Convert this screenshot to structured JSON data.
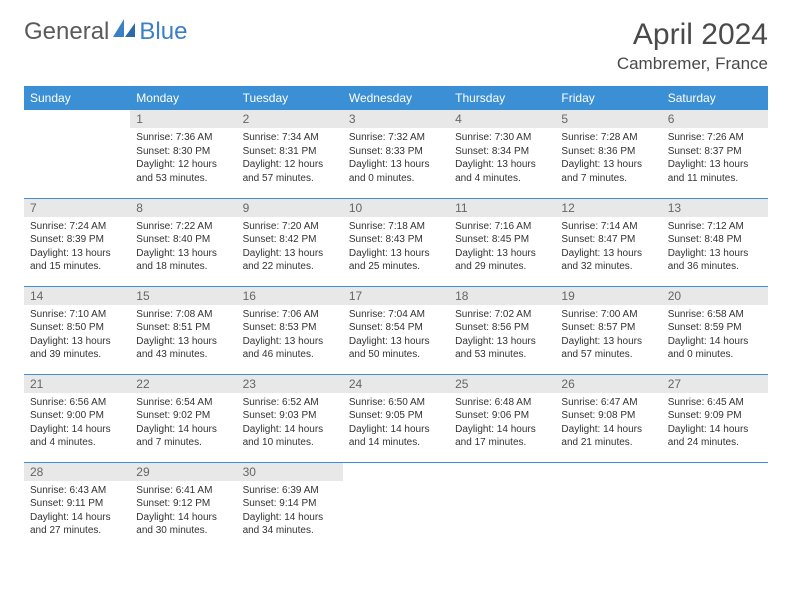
{
  "brand": {
    "part1": "General",
    "part2": "Blue"
  },
  "month_title": "April 2024",
  "location": "Cambremer, France",
  "colors": {
    "header_bg": "#3b8fd4",
    "header_text": "#ffffff",
    "daynum_bg": "#e8e8e8",
    "daynum_text": "#666666",
    "body_text": "#333333",
    "rule": "#3b8fd4",
    "brand_gray": "#5a5a5a",
    "brand_blue": "#3b7fc4"
  },
  "typography": {
    "month_title_fontsize": 30,
    "location_fontsize": 17,
    "dow_fontsize": 12,
    "daynum_fontsize": 12,
    "body_fontsize": 10
  },
  "day_labels": [
    "Sunday",
    "Monday",
    "Tuesday",
    "Wednesday",
    "Thursday",
    "Friday",
    "Saturday"
  ],
  "weeks": [
    [
      {
        "n": "",
        "sunrise": "",
        "sunset": "",
        "daylight1": "",
        "daylight2": ""
      },
      {
        "n": "1",
        "sunrise": "Sunrise: 7:36 AM",
        "sunset": "Sunset: 8:30 PM",
        "daylight1": "Daylight: 12 hours",
        "daylight2": "and 53 minutes."
      },
      {
        "n": "2",
        "sunrise": "Sunrise: 7:34 AM",
        "sunset": "Sunset: 8:31 PM",
        "daylight1": "Daylight: 12 hours",
        "daylight2": "and 57 minutes."
      },
      {
        "n": "3",
        "sunrise": "Sunrise: 7:32 AM",
        "sunset": "Sunset: 8:33 PM",
        "daylight1": "Daylight: 13 hours",
        "daylight2": "and 0 minutes."
      },
      {
        "n": "4",
        "sunrise": "Sunrise: 7:30 AM",
        "sunset": "Sunset: 8:34 PM",
        "daylight1": "Daylight: 13 hours",
        "daylight2": "and 4 minutes."
      },
      {
        "n": "5",
        "sunrise": "Sunrise: 7:28 AM",
        "sunset": "Sunset: 8:36 PM",
        "daylight1": "Daylight: 13 hours",
        "daylight2": "and 7 minutes."
      },
      {
        "n": "6",
        "sunrise": "Sunrise: 7:26 AM",
        "sunset": "Sunset: 8:37 PM",
        "daylight1": "Daylight: 13 hours",
        "daylight2": "and 11 minutes."
      }
    ],
    [
      {
        "n": "7",
        "sunrise": "Sunrise: 7:24 AM",
        "sunset": "Sunset: 8:39 PM",
        "daylight1": "Daylight: 13 hours",
        "daylight2": "and 15 minutes."
      },
      {
        "n": "8",
        "sunrise": "Sunrise: 7:22 AM",
        "sunset": "Sunset: 8:40 PM",
        "daylight1": "Daylight: 13 hours",
        "daylight2": "and 18 minutes."
      },
      {
        "n": "9",
        "sunrise": "Sunrise: 7:20 AM",
        "sunset": "Sunset: 8:42 PM",
        "daylight1": "Daylight: 13 hours",
        "daylight2": "and 22 minutes."
      },
      {
        "n": "10",
        "sunrise": "Sunrise: 7:18 AM",
        "sunset": "Sunset: 8:43 PM",
        "daylight1": "Daylight: 13 hours",
        "daylight2": "and 25 minutes."
      },
      {
        "n": "11",
        "sunrise": "Sunrise: 7:16 AM",
        "sunset": "Sunset: 8:45 PM",
        "daylight1": "Daylight: 13 hours",
        "daylight2": "and 29 minutes."
      },
      {
        "n": "12",
        "sunrise": "Sunrise: 7:14 AM",
        "sunset": "Sunset: 8:47 PM",
        "daylight1": "Daylight: 13 hours",
        "daylight2": "and 32 minutes."
      },
      {
        "n": "13",
        "sunrise": "Sunrise: 7:12 AM",
        "sunset": "Sunset: 8:48 PM",
        "daylight1": "Daylight: 13 hours",
        "daylight2": "and 36 minutes."
      }
    ],
    [
      {
        "n": "14",
        "sunrise": "Sunrise: 7:10 AM",
        "sunset": "Sunset: 8:50 PM",
        "daylight1": "Daylight: 13 hours",
        "daylight2": "and 39 minutes."
      },
      {
        "n": "15",
        "sunrise": "Sunrise: 7:08 AM",
        "sunset": "Sunset: 8:51 PM",
        "daylight1": "Daylight: 13 hours",
        "daylight2": "and 43 minutes."
      },
      {
        "n": "16",
        "sunrise": "Sunrise: 7:06 AM",
        "sunset": "Sunset: 8:53 PM",
        "daylight1": "Daylight: 13 hours",
        "daylight2": "and 46 minutes."
      },
      {
        "n": "17",
        "sunrise": "Sunrise: 7:04 AM",
        "sunset": "Sunset: 8:54 PM",
        "daylight1": "Daylight: 13 hours",
        "daylight2": "and 50 minutes."
      },
      {
        "n": "18",
        "sunrise": "Sunrise: 7:02 AM",
        "sunset": "Sunset: 8:56 PM",
        "daylight1": "Daylight: 13 hours",
        "daylight2": "and 53 minutes."
      },
      {
        "n": "19",
        "sunrise": "Sunrise: 7:00 AM",
        "sunset": "Sunset: 8:57 PM",
        "daylight1": "Daylight: 13 hours",
        "daylight2": "and 57 minutes."
      },
      {
        "n": "20",
        "sunrise": "Sunrise: 6:58 AM",
        "sunset": "Sunset: 8:59 PM",
        "daylight1": "Daylight: 14 hours",
        "daylight2": "and 0 minutes."
      }
    ],
    [
      {
        "n": "21",
        "sunrise": "Sunrise: 6:56 AM",
        "sunset": "Sunset: 9:00 PM",
        "daylight1": "Daylight: 14 hours",
        "daylight2": "and 4 minutes."
      },
      {
        "n": "22",
        "sunrise": "Sunrise: 6:54 AM",
        "sunset": "Sunset: 9:02 PM",
        "daylight1": "Daylight: 14 hours",
        "daylight2": "and 7 minutes."
      },
      {
        "n": "23",
        "sunrise": "Sunrise: 6:52 AM",
        "sunset": "Sunset: 9:03 PM",
        "daylight1": "Daylight: 14 hours",
        "daylight2": "and 10 minutes."
      },
      {
        "n": "24",
        "sunrise": "Sunrise: 6:50 AM",
        "sunset": "Sunset: 9:05 PM",
        "daylight1": "Daylight: 14 hours",
        "daylight2": "and 14 minutes."
      },
      {
        "n": "25",
        "sunrise": "Sunrise: 6:48 AM",
        "sunset": "Sunset: 9:06 PM",
        "daylight1": "Daylight: 14 hours",
        "daylight2": "and 17 minutes."
      },
      {
        "n": "26",
        "sunrise": "Sunrise: 6:47 AM",
        "sunset": "Sunset: 9:08 PM",
        "daylight1": "Daylight: 14 hours",
        "daylight2": "and 21 minutes."
      },
      {
        "n": "27",
        "sunrise": "Sunrise: 6:45 AM",
        "sunset": "Sunset: 9:09 PM",
        "daylight1": "Daylight: 14 hours",
        "daylight2": "and 24 minutes."
      }
    ],
    [
      {
        "n": "28",
        "sunrise": "Sunrise: 6:43 AM",
        "sunset": "Sunset: 9:11 PM",
        "daylight1": "Daylight: 14 hours",
        "daylight2": "and 27 minutes."
      },
      {
        "n": "29",
        "sunrise": "Sunrise: 6:41 AM",
        "sunset": "Sunset: 9:12 PM",
        "daylight1": "Daylight: 14 hours",
        "daylight2": "and 30 minutes."
      },
      {
        "n": "30",
        "sunrise": "Sunrise: 6:39 AM",
        "sunset": "Sunset: 9:14 PM",
        "daylight1": "Daylight: 14 hours",
        "daylight2": "and 34 minutes."
      },
      {
        "n": "",
        "sunrise": "",
        "sunset": "",
        "daylight1": "",
        "daylight2": ""
      },
      {
        "n": "",
        "sunrise": "",
        "sunset": "",
        "daylight1": "",
        "daylight2": ""
      },
      {
        "n": "",
        "sunrise": "",
        "sunset": "",
        "daylight1": "",
        "daylight2": ""
      },
      {
        "n": "",
        "sunrise": "",
        "sunset": "",
        "daylight1": "",
        "daylight2": ""
      }
    ]
  ]
}
